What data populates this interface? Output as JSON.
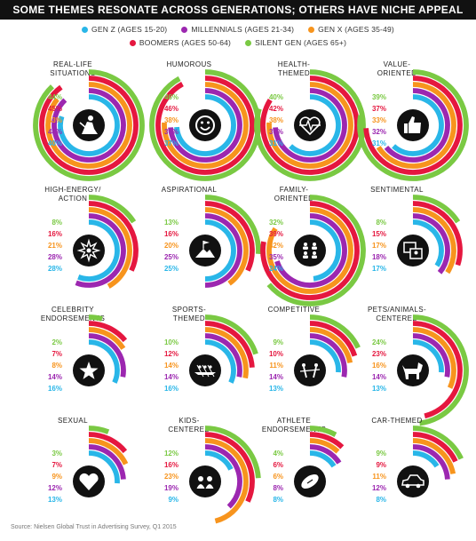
{
  "title": "SOME THEMES RESONATE ACROSS GENERATIONS; OTHERS HAVE NICHE APPEAL",
  "source": "Source: Nielsen Global Trust in Advertising Survey, Q1 2015",
  "colors": {
    "gen_z": "#29b6e8",
    "millennials": "#9c27b0",
    "gen_x": "#f7941d",
    "boomers": "#e5173f",
    "silent_gen": "#7ac943"
  },
  "legend": [
    {
      "label": "GEN Z (AGES 15-20)",
      "color": "#29b6e8"
    },
    {
      "label": "MILLENNIALS (AGES 21-34)",
      "color": "#9c27b0"
    },
    {
      "label": "GEN X (AGES 35-49)",
      "color": "#f7941d"
    },
    {
      "label": "BOOMERS (AGES 50-64)",
      "color": "#e5173f"
    },
    {
      "label": "SILENT GEN (AGES 65+)",
      "color": "#7ac943"
    }
  ],
  "chart_data": {
    "type": "radial-bar",
    "title": "SOME THEMES RESONATE ACROSS GENERATIONS; OTHERS HAVE NICHE APPEAL",
    "unit": "%",
    "series_order_outer_to_inner": [
      "Silent Gen",
      "Boomers",
      "Gen X",
      "Millennials",
      "Gen Z"
    ],
    "value_display_order": [
      "Silent Gen",
      "Boomers",
      "Gen X",
      "Millennials",
      "Gen Z"
    ],
    "series": [
      {
        "name": "GEN Z (AGES 15-20)",
        "color": "#29b6e8"
      },
      {
        "name": "MILLENNIALS (AGES 21-34)",
        "color": "#9c27b0"
      },
      {
        "name": "GEN X (AGES 35-49)",
        "color": "#f7941d"
      },
      {
        "name": "BOOMERS (AGES 50-64)",
        "color": "#e5173f"
      },
      {
        "name": "SILENT GEN (AGES 65+)",
        "color": "#7ac943"
      }
    ],
    "themes": [
      {
        "label": [
          "REAL-LIFE",
          "SITUATIONS"
        ],
        "icon": "worker-icon",
        "values": [
          44,
          45,
          43,
          44,
          40
        ]
      },
      {
        "label": [
          "HUMOROUS"
        ],
        "icon": "smiley-icon",
        "values": [
          46,
          46,
          38,
          37,
          37
        ]
      },
      {
        "label": [
          "HEALTH-",
          "THEMED"
        ],
        "icon": "heartbeat-icon",
        "values": [
          40,
          42,
          38,
          37,
          31
        ]
      },
      {
        "label": [
          "VALUE-",
          "ORIENTED"
        ],
        "icon": "thumbs-up-icon",
        "values": [
          39,
          37,
          33,
          32,
          31
        ]
      },
      {
        "label": [
          "HIGH-ENERGY/",
          "ACTION"
        ],
        "icon": "burst-icon",
        "values": [
          8,
          16,
          21,
          28,
          28
        ]
      },
      {
        "label": [
          "ASPIRATIONAL"
        ],
        "icon": "mountain-flag-icon",
        "values": [
          13,
          16,
          20,
          25,
          25
        ]
      },
      {
        "label": [
          "FAMILY-",
          "ORIENTED"
        ],
        "icon": "family-icon",
        "values": [
          32,
          39,
          42,
          35,
          24
        ]
      },
      {
        "label": [
          "SENTIMENTAL"
        ],
        "icon": "photos-icon",
        "values": [
          8,
          15,
          17,
          18,
          17
        ]
      },
      {
        "label": [
          "CELEBRITY",
          "ENDORSEMENTS"
        ],
        "icon": "star-icon",
        "values": [
          2,
          7,
          8,
          14,
          16
        ]
      },
      {
        "label": [
          "SPORTS-",
          "THEMED"
        ],
        "icon": "rowing-icon",
        "values": [
          10,
          12,
          14,
          14,
          16
        ]
      },
      {
        "label": [
          "COMPETITIVE"
        ],
        "icon": "tug-of-war-icon",
        "values": [
          9,
          10,
          11,
          14,
          13
        ]
      },
      {
        "label": [
          "PETS/ANIMALS-",
          "CENTERED"
        ],
        "icon": "dog-icon",
        "values": [
          24,
          23,
          16,
          14,
          13
        ]
      },
      {
        "label": [
          "SEXUAL"
        ],
        "icon": "heart-icon",
        "values": [
          3,
          7,
          9,
          12,
          13
        ]
      },
      {
        "label": [
          "KIDS-",
          "CENTERED"
        ],
        "icon": "kids-icon",
        "values": [
          12,
          16,
          23,
          19,
          9
        ]
      },
      {
        "label": [
          "ATHLETE",
          "ENDORSEMENTS"
        ],
        "icon": "football-icon",
        "values": [
          4,
          6,
          6,
          8,
          8
        ]
      },
      {
        "label": [
          "CAR-THEMED"
        ],
        "icon": "car-icon",
        "values": [
          9,
          9,
          11,
          12,
          8
        ]
      }
    ]
  }
}
